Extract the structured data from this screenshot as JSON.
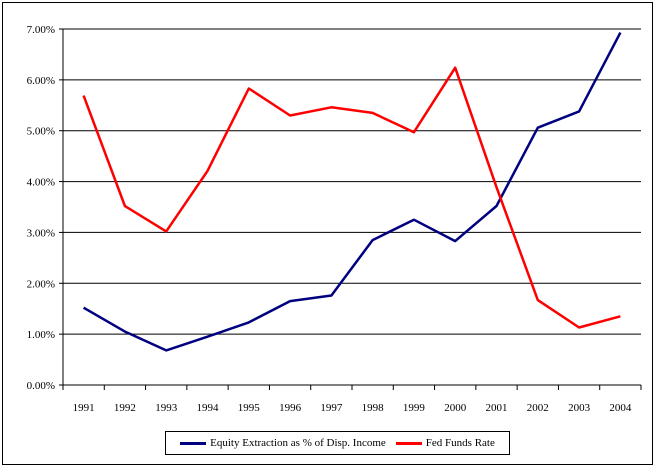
{
  "chart_data": {
    "type": "line",
    "title": "",
    "xlabel": "",
    "ylabel": "",
    "categories": [
      "1991",
      "1992",
      "1993",
      "1994",
      "1995",
      "1996",
      "1997",
      "1998",
      "1999",
      "2000",
      "2001",
      "2002",
      "2003",
      "2004"
    ],
    "ylim": [
      0,
      0.07
    ],
    "yticks": [
      0,
      0.01,
      0.02,
      0.03,
      0.04,
      0.05,
      0.06,
      0.07
    ],
    "ytick_labels": [
      "0.00%",
      "1.00%",
      "2.00%",
      "3.00%",
      "4.00%",
      "5.00%",
      "6.00%",
      "7.00%"
    ],
    "grid": "horizontal",
    "legend_position": "bottom",
    "series": [
      {
        "name": "Equity Extraction as % of Disp. Income",
        "color": "#000080",
        "values": [
          0.0152,
          0.0105,
          0.0068,
          0.0095,
          0.0123,
          0.0165,
          0.0176,
          0.0285,
          0.0325,
          0.0283,
          0.0352,
          0.0506,
          0.0538,
          0.0693
        ]
      },
      {
        "name": "Fed Funds Rate",
        "color": "#ff0000",
        "values": [
          0.0569,
          0.0352,
          0.0302,
          0.0421,
          0.0583,
          0.053,
          0.0546,
          0.0535,
          0.0497,
          0.0624,
          0.0389,
          0.0167,
          0.0113,
          0.0135
        ]
      }
    ]
  }
}
